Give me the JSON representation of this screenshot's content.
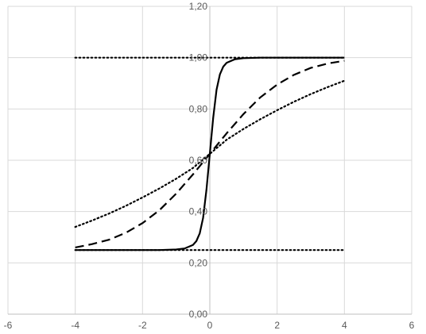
{
  "chart_data": {
    "type": "line",
    "xlim": [
      -6,
      6
    ],
    "ylim": [
      0,
      1.2
    ],
    "x_ticks": [
      "-6",
      "-4",
      "-2",
      "0",
      "2",
      "4",
      "6"
    ],
    "y_ticks": [
      "0,00",
      "0,20",
      "0,40",
      "0,60",
      "0,80",
      "1,00",
      "1,20"
    ],
    "grid": true,
    "legend": "none",
    "series": [
      {
        "style": "solid",
        "x": [
          -4,
          -3,
          -2,
          -1.5,
          -1,
          -0.75,
          -0.5,
          -0.4,
          -0.3,
          -0.2,
          -0.1,
          0,
          0.1,
          0.2,
          0.3,
          0.4,
          0.5,
          0.75,
          1,
          1.5,
          2,
          3,
          4
        ],
        "y": [
          0.25,
          0.25,
          0.25,
          0.25,
          0.252,
          0.256,
          0.27,
          0.285,
          0.315,
          0.375,
          0.485,
          0.625,
          0.765,
          0.875,
          0.935,
          0.965,
          0.98,
          0.994,
          0.998,
          1.0,
          1.0,
          1.0,
          1.0
        ]
      },
      {
        "style": "dashed",
        "x": [
          -4,
          -3.5,
          -3,
          -2.5,
          -2,
          -1.5,
          -1,
          -0.5,
          0,
          0.5,
          1,
          1.5,
          2,
          2.5,
          3,
          3.5,
          4
        ],
        "y": [
          0.26,
          0.273,
          0.29,
          0.317,
          0.355,
          0.405,
          0.47,
          0.545,
          0.625,
          0.705,
          0.78,
          0.845,
          0.895,
          0.933,
          0.96,
          0.977,
          0.988
        ]
      },
      {
        "style": "dotted",
        "x": [
          -4,
          -3.5,
          -3,
          -2.5,
          -2,
          -1.5,
          -1,
          -0.5,
          0,
          0.5,
          1,
          1.5,
          2,
          2.5,
          3,
          3.5,
          4
        ],
        "y": [
          0.34,
          0.365,
          0.392,
          0.422,
          0.455,
          0.49,
          0.528,
          0.57,
          0.625,
          0.68,
          0.722,
          0.76,
          0.795,
          0.828,
          0.858,
          0.885,
          0.91
        ]
      },
      {
        "style": "dotted",
        "x": [
          -4,
          4
        ],
        "y": [
          1.0,
          1.0
        ]
      },
      {
        "style": "dotted",
        "x": [
          -4,
          4
        ],
        "y": [
          0.25,
          0.25
        ]
      }
    ]
  }
}
